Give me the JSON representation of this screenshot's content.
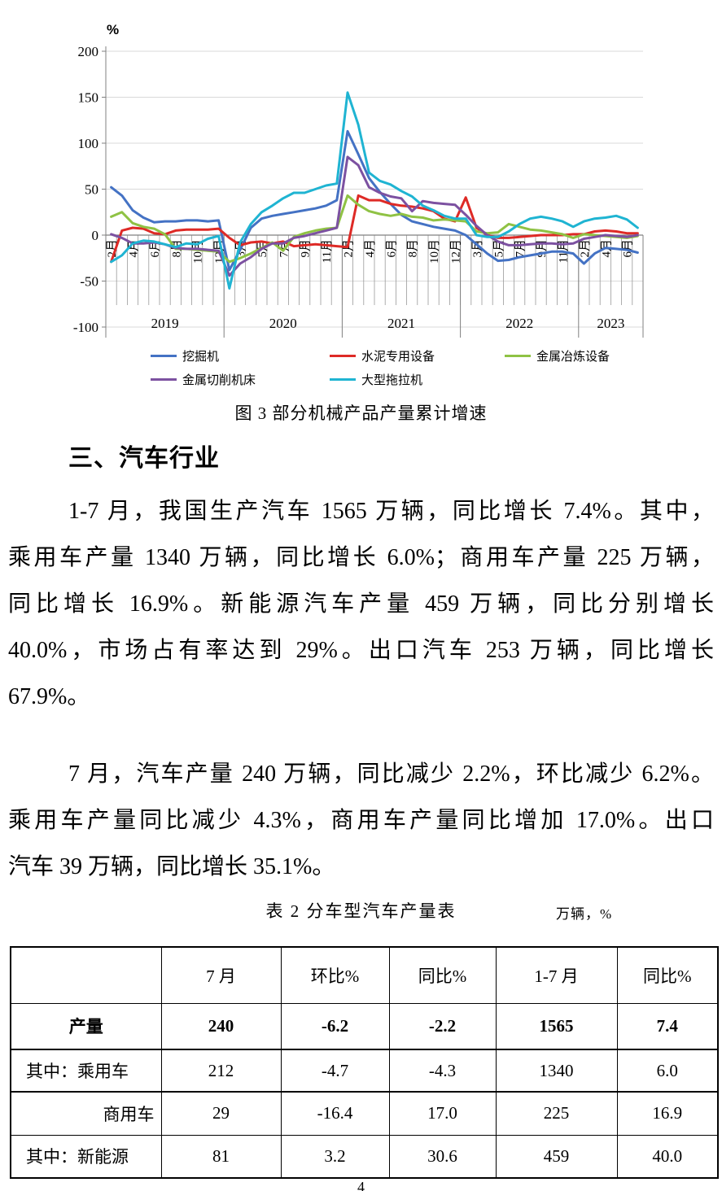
{
  "page_number": "4",
  "section": {
    "heading": "三、汽车行业"
  },
  "chart": {
    "unit_label": "%",
    "figure_caption": "图 3  部分机械产品产量累计增速",
    "legend": [
      {
        "label": "挖掘机",
        "color": "#4472C4"
      },
      {
        "label": "水泥专用设备",
        "color": "#DE2A26"
      },
      {
        "label": "金属冶炼设备",
        "color": "#8FC244"
      },
      {
        "label": "金属切削机床",
        "color": "#7C51A1"
      },
      {
        "label": "大型拖拉机",
        "color": "#1FB4D2"
      }
    ]
  },
  "chart_data": {
    "type": "line",
    "title": "图 3 部分机械产品产量累计增速",
    "ylabel": "%",
    "ylim": [
      -100,
      200
    ],
    "y_ticks": [
      200,
      150,
      100,
      50,
      0,
      -50,
      -100
    ],
    "grid": true,
    "legend_position": "bottom",
    "x_labels": [
      "2月",
      "",
      "4月",
      "",
      "6月",
      "",
      "8月",
      "",
      "10月",
      "",
      "12月",
      "",
      "3月",
      "",
      "5月",
      "",
      "7月",
      "",
      "9月",
      "",
      "11月",
      "",
      "2月",
      "",
      "4月",
      "",
      "6月",
      "",
      "8月",
      "",
      "10月",
      "",
      "12月",
      "",
      "3月",
      "",
      "5月",
      "",
      "7月",
      "",
      "9月",
      "",
      "11月",
      "",
      "2月",
      "",
      "4月",
      "",
      "6月",
      ""
    ],
    "year_groups": [
      {
        "label": "2019",
        "count": 11
      },
      {
        "label": "2020",
        "count": 11
      },
      {
        "label": "2021",
        "count": 11
      },
      {
        "label": "2022",
        "count": 11
      },
      {
        "label": "2023",
        "count": 6
      }
    ],
    "series": [
      {
        "name": "挖掘机",
        "color": "#4472C4",
        "values": [
          52,
          43,
          27,
          19,
          14,
          15,
          15,
          16,
          16,
          15,
          16,
          -38,
          -16,
          8,
          18,
          21,
          23,
          25,
          27,
          29,
          32,
          38,
          113,
          88,
          62,
          47,
          34,
          22,
          15,
          12,
          9,
          7,
          5,
          0,
          -10,
          -20,
          -28,
          -27,
          -24,
          -22,
          -20,
          -18,
          -18,
          -20,
          -31,
          -20,
          -14,
          -15,
          -16,
          -19
        ]
      },
      {
        "name": "水泥专用设备",
        "color": "#DE2A26",
        "values": [
          -29,
          5,
          8,
          7,
          2,
          1,
          5,
          6,
          6,
          6,
          7,
          -3,
          -11,
          -8,
          -7,
          -9,
          -7,
          -12,
          -11,
          -10,
          -11,
          -12,
          -13,
          43,
          38,
          38,
          34,
          32,
          31,
          29,
          26,
          18,
          15,
          41,
          8,
          0,
          -3,
          -3,
          -2,
          -1,
          0,
          0,
          0,
          1,
          1,
          4,
          5,
          4,
          2,
          2
        ]
      },
      {
        "name": "金属冶炼设备",
        "color": "#8FC244",
        "values": [
          20,
          25,
          13,
          9,
          7,
          1,
          -15,
          -15,
          -16,
          -17,
          -18,
          -29,
          -25,
          -20,
          -14,
          -8,
          -17,
          -2,
          2,
          5,
          7,
          8,
          43,
          33,
          26,
          23,
          21,
          23,
          20,
          19,
          16,
          17,
          16,
          15,
          4,
          2,
          3,
          12,
          9,
          6,
          5,
          3,
          1,
          -3,
          1,
          0,
          -1,
          -2,
          -3,
          -1
        ]
      },
      {
        "name": "金属切削机床",
        "color": "#7C51A1",
        "values": [
          1,
          -3,
          -9,
          -9,
          -8,
          -10,
          -14,
          -15,
          -15,
          -16,
          -17,
          -44,
          -31,
          -24,
          -15,
          -9,
          -9,
          -3,
          -1,
          2,
          5,
          8,
          85,
          76,
          52,
          46,
          42,
          40,
          26,
          37,
          35,
          34,
          33,
          22,
          10,
          0,
          -7,
          -11,
          -11,
          -10,
          -9,
          -9,
          -10,
          -9,
          -4,
          -2,
          0,
          -1,
          -2,
          0
        ]
      },
      {
        "name": "大型拖拉机",
        "color": "#1FB4D2",
        "values": [
          -29,
          -22,
          -9,
          -6,
          -7,
          -10,
          -13,
          -9,
          -10,
          -4,
          -1,
          -58,
          -8,
          12,
          25,
          32,
          40,
          46,
          46,
          50,
          54,
          56,
          155,
          120,
          68,
          59,
          55,
          48,
          42,
          32,
          27,
          21,
          18,
          18,
          0,
          -2,
          -2,
          4,
          12,
          18,
          20,
          18,
          15,
          9,
          15,
          18,
          19,
          21,
          17,
          8
        ]
      }
    ]
  },
  "paragraphs": [
    {
      "lines": [
        {
          "text": "1-7 月，我国生产汽车 1565 万辆，同比增长 7.4%。其中，",
          "indent": true,
          "justify": true
        },
        {
          "text": "乘用车产量 1340 万辆，同比增长 6.0%；商用车产量 225 万辆，",
          "indent": false,
          "justify": true
        },
        {
          "text": "同比增长 16.9%。新能源汽车产量 459 万辆，同比分别增长",
          "indent": false,
          "justify": true
        },
        {
          "text": "40.0%，市场占有率达到 29%。出口汽车 253 万辆，同比增长",
          "indent": false,
          "justify": true
        },
        {
          "text": "67.9%。",
          "indent": false,
          "justify": false
        }
      ]
    },
    {
      "lines": [
        {
          "text": "7 月，汽车产量 240 万辆，同比减少 2.2%，环比减少 6.2%。",
          "indent": true,
          "justify": true
        },
        {
          "text": "乘用车产量同比减少 4.3%，商用车产量同比增加 17.0%。出口",
          "indent": false,
          "justify": true
        },
        {
          "text": "汽车 39 万辆，同比增长 35.1%。",
          "indent": false,
          "justify": false
        }
      ]
    }
  ],
  "table": {
    "caption": "表 2  分车型汽车产量表",
    "unit_note": "万辆，%",
    "header": [
      "",
      "7 月",
      "环比%",
      "同比%",
      "1-7 月",
      "同比%"
    ],
    "rows": [
      {
        "label": "产量",
        "bold": true,
        "align": "center",
        "thick_bottom": true,
        "values": [
          "240",
          "-6.2",
          "-2.2",
          "1565",
          "7.4"
        ]
      },
      {
        "label": "其中：乘用车",
        "bold": false,
        "align": "left",
        "thick_bottom": true,
        "values": [
          "212",
          "-4.7",
          "-4.3",
          "1340",
          "6.0"
        ]
      },
      {
        "label": "商用车",
        "bold": false,
        "align": "right",
        "thick_bottom": false,
        "values": [
          "29",
          "-16.4",
          "17.0",
          "225",
          "16.9"
        ]
      },
      {
        "label": "其中：新能源",
        "bold": false,
        "align": "left",
        "thick_bottom": false,
        "values": [
          "81",
          "3.2",
          "30.6",
          "459",
          "40.0"
        ]
      }
    ]
  }
}
